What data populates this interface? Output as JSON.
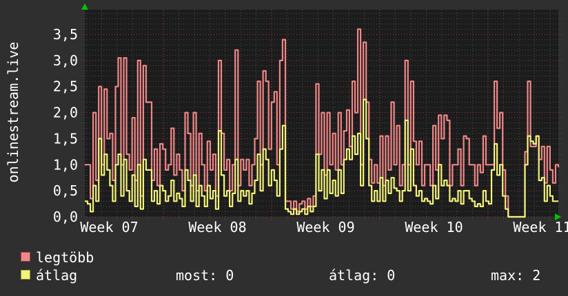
{
  "page": {
    "background": "#2f2f2f",
    "plot_background": "#1c1c1c"
  },
  "chart_data": {
    "type": "line",
    "title": "onlinestream.live",
    "xlabel": "",
    "ylabel": "",
    "ylim": [
      0,
      3.98
    ],
    "grid": true,
    "legend_position": "bottom-left",
    "decimal_style": "comma",
    "y_ticks": [
      {
        "label": "3,5",
        "value": 3.5
      },
      {
        "label": "3,0",
        "value": 3.0
      },
      {
        "label": "2,5",
        "value": 2.5
      },
      {
        "label": "2,0",
        "value": 2.0
      },
      {
        "label": "1,5",
        "value": 1.5
      },
      {
        "label": "1,0",
        "value": 1.0
      },
      {
        "label": "0,5",
        "value": 0.5
      },
      {
        "label": "0,0",
        "value": 0.0
      }
    ],
    "x_tick_labels": [
      "Week 07",
      "Week 08",
      "Week 09",
      "Week 10",
      "Week 11"
    ],
    "series": [
      {
        "name": "legtöbb",
        "color": "#f08787",
        "values": [
          1.0,
          1.0,
          0.35,
          2.0,
          0.7,
          2.5,
          1.0,
          2.45,
          1.5,
          1.6,
          0.7,
          2.5,
          3.05,
          1.0,
          3.05,
          1.2,
          0.9,
          1.9,
          0.7,
          3.0,
          0.4,
          2.9,
          2.2,
          2.2,
          0.7,
          1.3,
          0.6,
          1.4,
          1.3,
          0.9,
          1.0,
          1.7,
          0.8,
          1.2,
          0.9,
          0.5,
          2.0,
          1.6,
          0.6,
          2.0,
          0.5,
          1.6,
          1.0,
          0.5,
          1.45,
          0.9,
          1.2,
          0.4,
          3.0,
          1.6,
          0.9,
          1.1,
          0.5,
          1.0,
          3.2,
          0.6,
          1.1,
          0.9,
          1.1,
          0.6,
          1.0,
          1.5,
          2.6,
          1.0,
          2.8,
          2.6,
          1.3,
          2.2,
          2.4,
          1.0,
          3.0,
          3.4,
          0.3,
          0.3,
          0.15,
          0.3,
          0.1,
          0.25,
          0.3,
          0.15,
          0.35,
          0.2,
          0.4,
          2.55,
          1.2,
          2.0,
          0.8,
          2.0,
          1.0,
          1.6,
          0.9,
          2.0,
          1.0,
          1.65,
          2.05,
          1.35,
          2.6,
          2.0,
          3.6,
          1.0,
          3.35,
          2.2,
          1.1,
          0.65,
          1.0,
          0.65,
          1.55,
          0.6,
          1.55,
          0.9,
          2.2,
          1.0,
          1.75,
          0.6,
          1.0,
          3.0,
          1.0,
          2.6,
          1.45,
          1.0,
          1.45,
          0.6,
          1.0,
          1.0,
          0.6,
          1.75,
          0.9,
          1.95,
          1.5,
          1.95,
          1.85,
          0.6,
          1.0,
          1.0,
          1.3,
          0.6,
          1.55,
          1.5,
          1.0,
          1.0,
          0.6,
          1.0,
          0.85,
          1.55,
          1.0,
          1.0,
          1.0,
          2.6,
          1.7,
          2.0,
          0.9,
          0.4,
          0.0,
          0.0,
          0.0,
          0.0,
          0.0,
          0.0,
          1.25,
          2.6,
          1.35,
          1.35,
          1.55,
          1.1,
          1.35,
          0.65,
          1.35,
          0.9,
          0.65,
          1.0,
          0.95
        ]
      },
      {
        "name": "átlag",
        "color": "#f3f37a",
        "values": [
          0.3,
          0.25,
          0.1,
          0.6,
          0.3,
          1.5,
          0.8,
          1.2,
          0.9,
          0.6,
          0.3,
          1.0,
          1.2,
          0.4,
          1.1,
          0.5,
          0.3,
          0.8,
          0.2,
          1.0,
          0.15,
          1.1,
          0.9,
          0.9,
          0.3,
          0.5,
          0.25,
          0.6,
          0.5,
          0.3,
          0.4,
          0.7,
          0.3,
          0.45,
          0.35,
          0.2,
          0.9,
          0.7,
          0.3,
          0.8,
          0.2,
          0.6,
          0.4,
          0.2,
          0.6,
          0.35,
          0.5,
          0.15,
          1.65,
          0.8,
          0.4,
          0.5,
          0.2,
          0.45,
          1.1,
          0.3,
          0.5,
          0.4,
          0.5,
          0.25,
          0.45,
          0.7,
          1.2,
          0.5,
          1.3,
          1.1,
          0.6,
          0.9,
          0.7,
          0.4,
          1.3,
          1.75,
          0.15,
          0.1,
          0.05,
          0.15,
          0.05,
          0.1,
          0.15,
          0.05,
          0.2,
          0.1,
          0.2,
          1.2,
          0.5,
          0.9,
          0.35,
          0.9,
          0.45,
          0.7,
          0.4,
          0.9,
          0.45,
          1.1,
          1.3,
          1.1,
          1.55,
          1.2,
          1.6,
          0.6,
          2.25,
          1.5,
          0.6,
          0.3,
          0.5,
          0.3,
          0.75,
          0.3,
          0.7,
          0.45,
          0.75,
          0.55,
          0.5,
          0.3,
          0.5,
          1.85,
          0.5,
          1.3,
          0.6,
          0.4,
          0.5,
          0.3,
          0.35,
          0.3,
          0.25,
          0.6,
          0.35,
          1.0,
          0.6,
          0.7,
          0.6,
          0.3,
          0.35,
          0.3,
          0.5,
          0.25,
          0.5,
          0.5,
          0.35,
          0.3,
          0.2,
          0.25,
          0.2,
          0.5,
          0.3,
          0.25,
          0.9,
          1.4,
          0.8,
          1.0,
          0.4,
          0.15,
          0.0,
          0.0,
          0.0,
          0.0,
          0.0,
          0.0,
          1.0,
          1.55,
          1.45,
          1.4,
          1.55,
          0.7,
          0.75,
          0.3,
          0.6,
          0.4,
          0.3,
          0.3,
          0.3
        ]
      }
    ]
  },
  "legend": {
    "items": [
      {
        "label": "legtöbb",
        "swatch": "#f08787",
        "swatch_border": "#9c4848"
      },
      {
        "label": "átlag",
        "swatch": "#f3f37a",
        "swatch_border": "#97973f"
      }
    ],
    "stats": [
      "most: 0",
      "átlag: 0",
      "max: 2"
    ]
  },
  "colors": {
    "grid_minor": "#4e4e4e",
    "grid_major": "#a03c3c",
    "grid_week": "#b04040",
    "arrow": "#00c400",
    "text": "#ffffff"
  }
}
